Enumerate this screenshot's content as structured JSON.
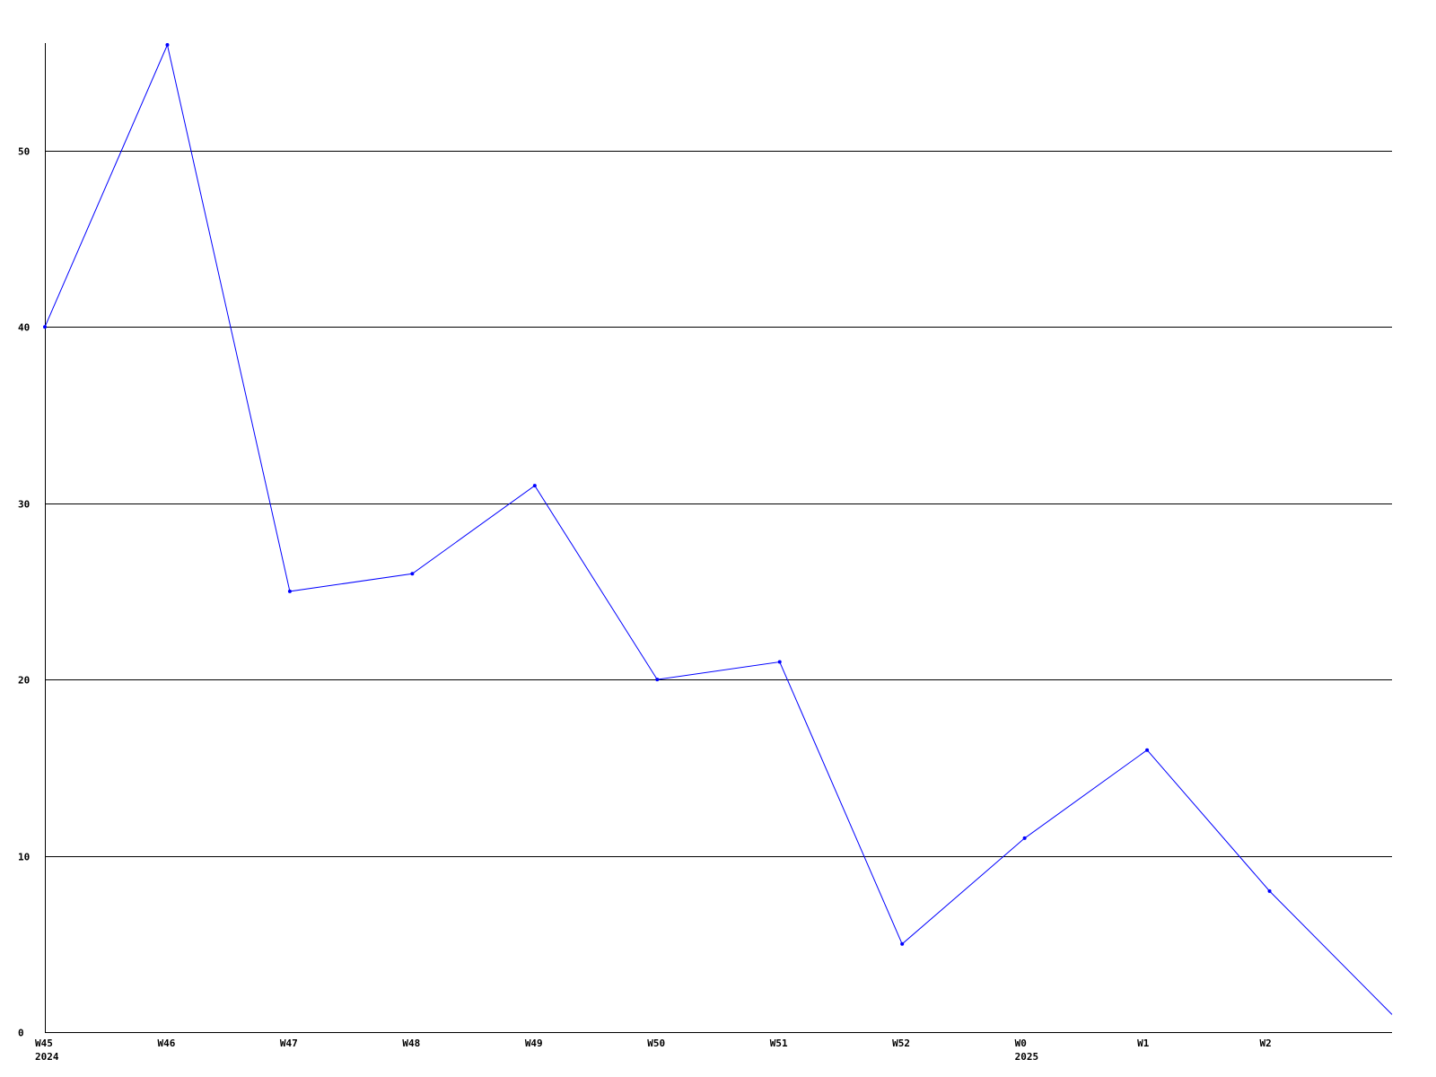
{
  "chart_data": {
    "type": "line",
    "title": "",
    "xlabel": "",
    "ylabel": "",
    "categories": [
      "W45",
      "W46",
      "W47",
      "W48",
      "W49",
      "W50",
      "W51",
      "W52",
      "W0",
      "W1",
      "W2",
      ""
    ],
    "year_labels": {
      "0": "2024",
      "8": "2025"
    },
    "values": [
      40,
      56,
      25,
      26,
      31,
      20,
      21,
      5,
      11,
      16,
      8,
      1
    ],
    "ylim": [
      0,
      56
    ],
    "yticks": [
      0,
      10,
      20,
      30,
      40,
      50
    ],
    "grid": true,
    "line_color": "#0000ff",
    "grid_color": "#000000"
  }
}
